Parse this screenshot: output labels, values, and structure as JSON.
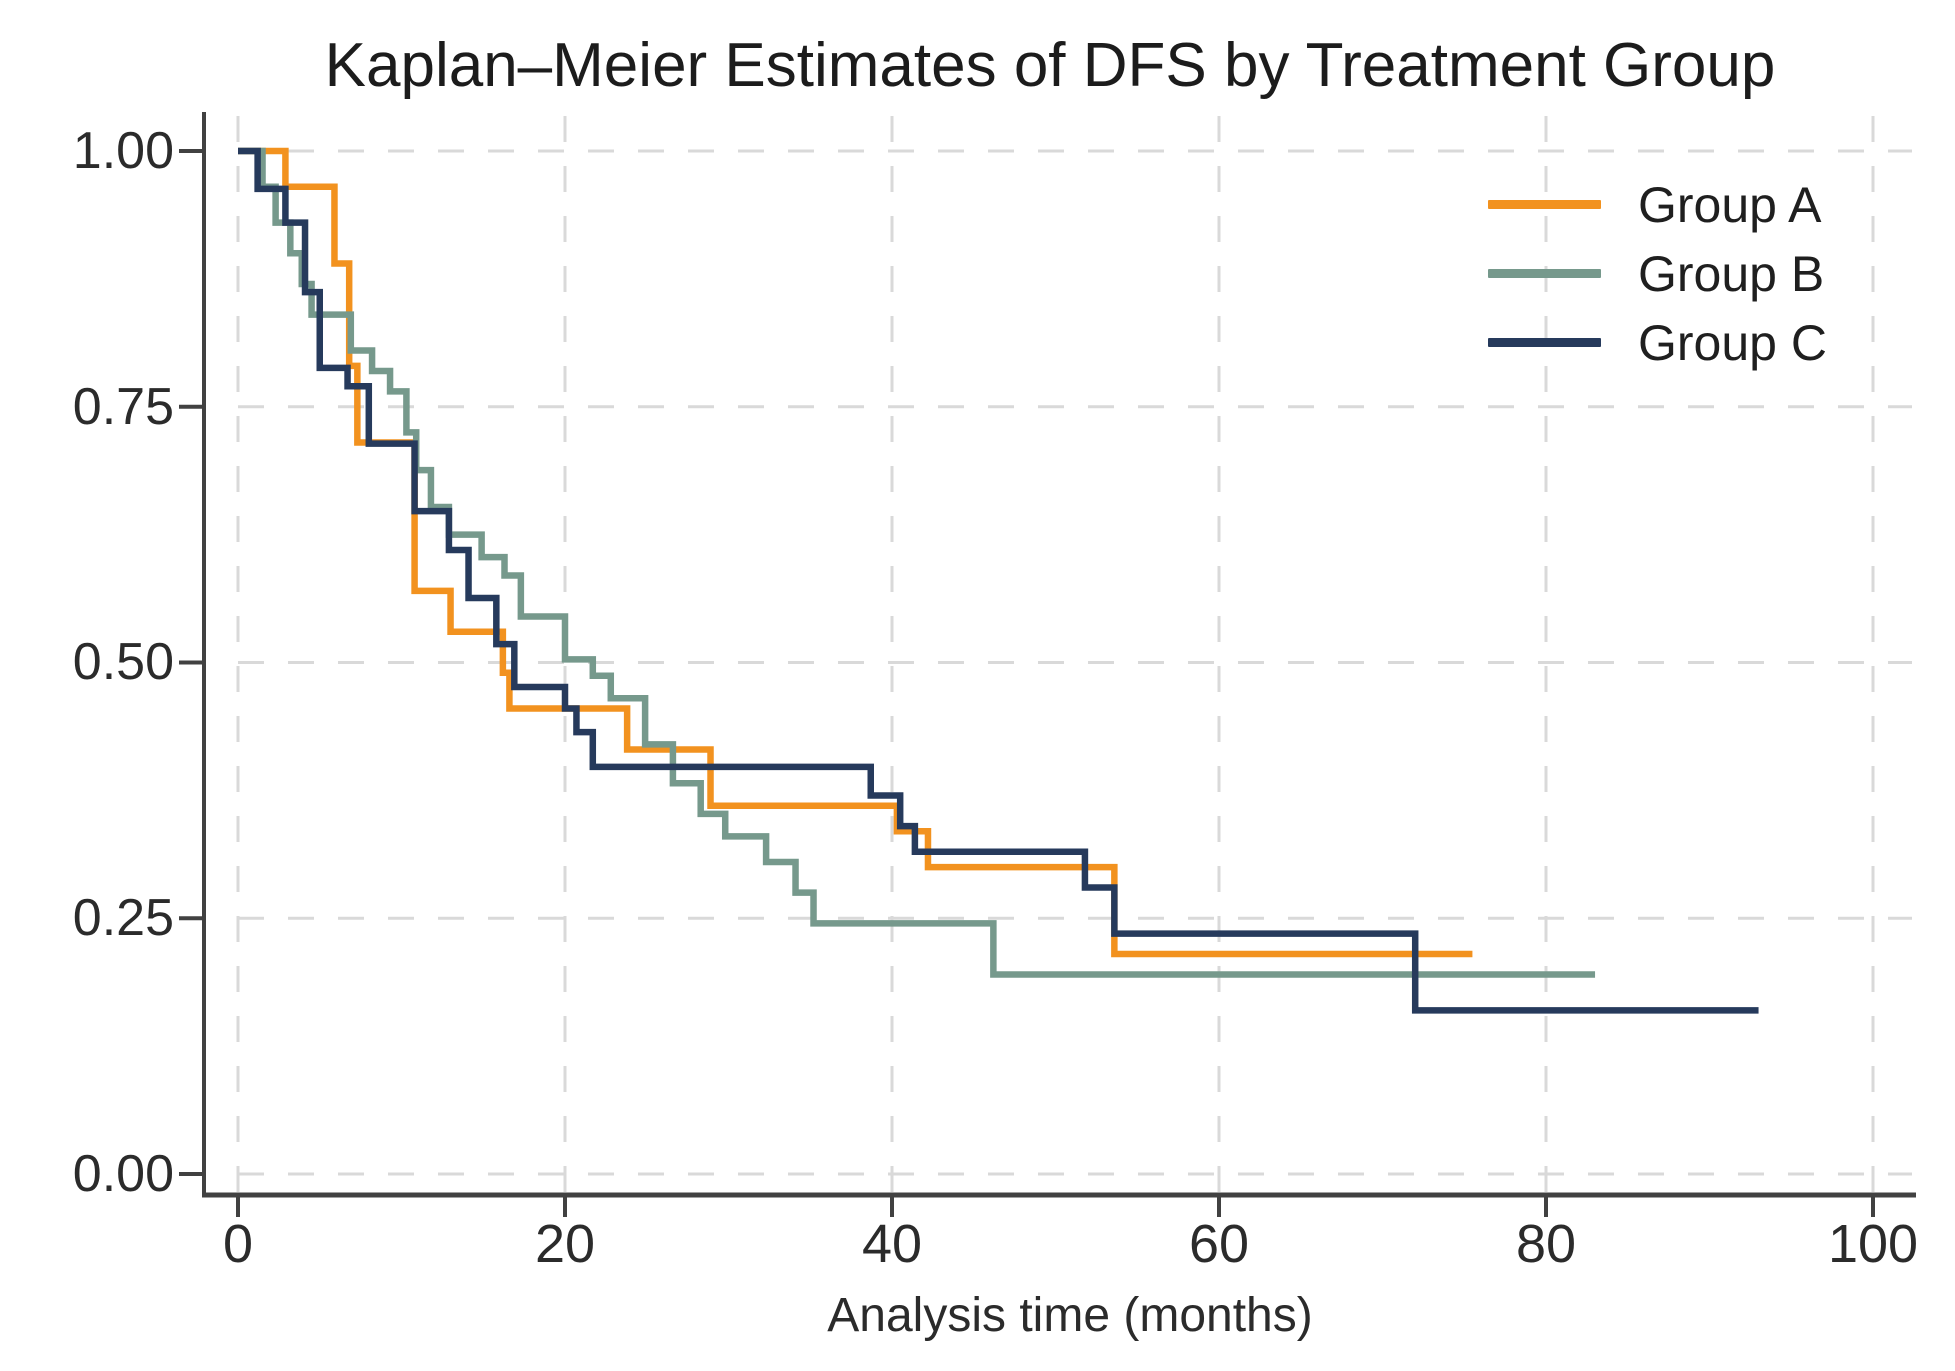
{
  "chart_data": {
    "type": "line",
    "subtype": "kaplan-meier-step",
    "title": "Kaplan–Meier Estimates of DFS by Treatment Group",
    "xlabel": "Analysis time (months)",
    "ylabel": "",
    "xlim": [
      0,
      100
    ],
    "ylim": [
      0.0,
      1.0
    ],
    "xtick_values": [
      0,
      20,
      40,
      60,
      80,
      100
    ],
    "xtick_labels": [
      "0",
      "20",
      "40",
      "60",
      "80",
      "100"
    ],
    "ytick_values": [
      1.0,
      0.75,
      0.5,
      0.25,
      0.0
    ],
    "ytick_labels": [
      "1.00",
      "0.75",
      "0.50",
      "0.25",
      "0.00"
    ],
    "grid": "dashed light-gray gridlines at every labeled tick, both axes",
    "legend_position": "top-right inside plot",
    "axis_color": "#414141",
    "gridline_color": "#d9d9d9",
    "series": [
      {
        "name": "Group A",
        "color": "#F2921F",
        "start": [
          0,
          1.0
        ],
        "steps": [
          [
            2.9,
            0.965
          ],
          [
            5.9,
            0.89
          ],
          [
            6.8,
            0.79
          ],
          [
            7.3,
            0.715
          ],
          [
            10.8,
            0.57
          ],
          [
            13.0,
            0.53
          ],
          [
            16.2,
            0.49
          ],
          [
            16.6,
            0.455
          ],
          [
            23.8,
            0.415
          ],
          [
            28.9,
            0.36
          ],
          [
            40.3,
            0.335
          ],
          [
            42.2,
            0.3
          ],
          [
            53.6,
            0.215
          ]
        ],
        "end_time": 75.5
      },
      {
        "name": "Group B",
        "color": "#76998C",
        "start": [
          0,
          1.0
        ],
        "steps": [
          [
            1.5,
            0.965
          ],
          [
            2.3,
            0.93
          ],
          [
            3.2,
            0.9
          ],
          [
            3.9,
            0.87
          ],
          [
            4.5,
            0.84
          ],
          [
            6.9,
            0.805
          ],
          [
            8.2,
            0.785
          ],
          [
            9.3,
            0.765
          ],
          [
            10.3,
            0.725
          ],
          [
            10.9,
            0.688
          ],
          [
            11.8,
            0.652
          ],
          [
            12.9,
            0.625
          ],
          [
            14.9,
            0.603
          ],
          [
            16.3,
            0.585
          ],
          [
            17.3,
            0.545
          ],
          [
            20.0,
            0.503
          ],
          [
            21.7,
            0.487
          ],
          [
            22.8,
            0.465
          ],
          [
            24.9,
            0.42
          ],
          [
            26.6,
            0.382
          ],
          [
            28.3,
            0.352
          ],
          [
            29.8,
            0.33
          ],
          [
            32.3,
            0.305
          ],
          [
            34.1,
            0.275
          ],
          [
            35.2,
            0.245
          ],
          [
            46.2,
            0.195
          ]
        ],
        "end_time": 83.0
      },
      {
        "name": "Group C",
        "color": "#263A5C",
        "start": [
          0,
          1.0
        ],
        "steps": [
          [
            1.2,
            0.963
          ],
          [
            2.9,
            0.93
          ],
          [
            4.1,
            0.862
          ],
          [
            5.0,
            0.788
          ],
          [
            6.7,
            0.77
          ],
          [
            8.0,
            0.714
          ],
          [
            10.8,
            0.648
          ],
          [
            12.9,
            0.61
          ],
          [
            14.1,
            0.563
          ],
          [
            15.8,
            0.518
          ],
          [
            16.9,
            0.476
          ],
          [
            20.0,
            0.455
          ],
          [
            20.7,
            0.432
          ],
          [
            21.7,
            0.398
          ],
          [
            38.7,
            0.37
          ],
          [
            40.5,
            0.34
          ],
          [
            41.4,
            0.315
          ],
          [
            51.8,
            0.28
          ],
          [
            53.6,
            0.235
          ],
          [
            72.0,
            0.16
          ]
        ],
        "end_time": 93.0
      }
    ]
  }
}
